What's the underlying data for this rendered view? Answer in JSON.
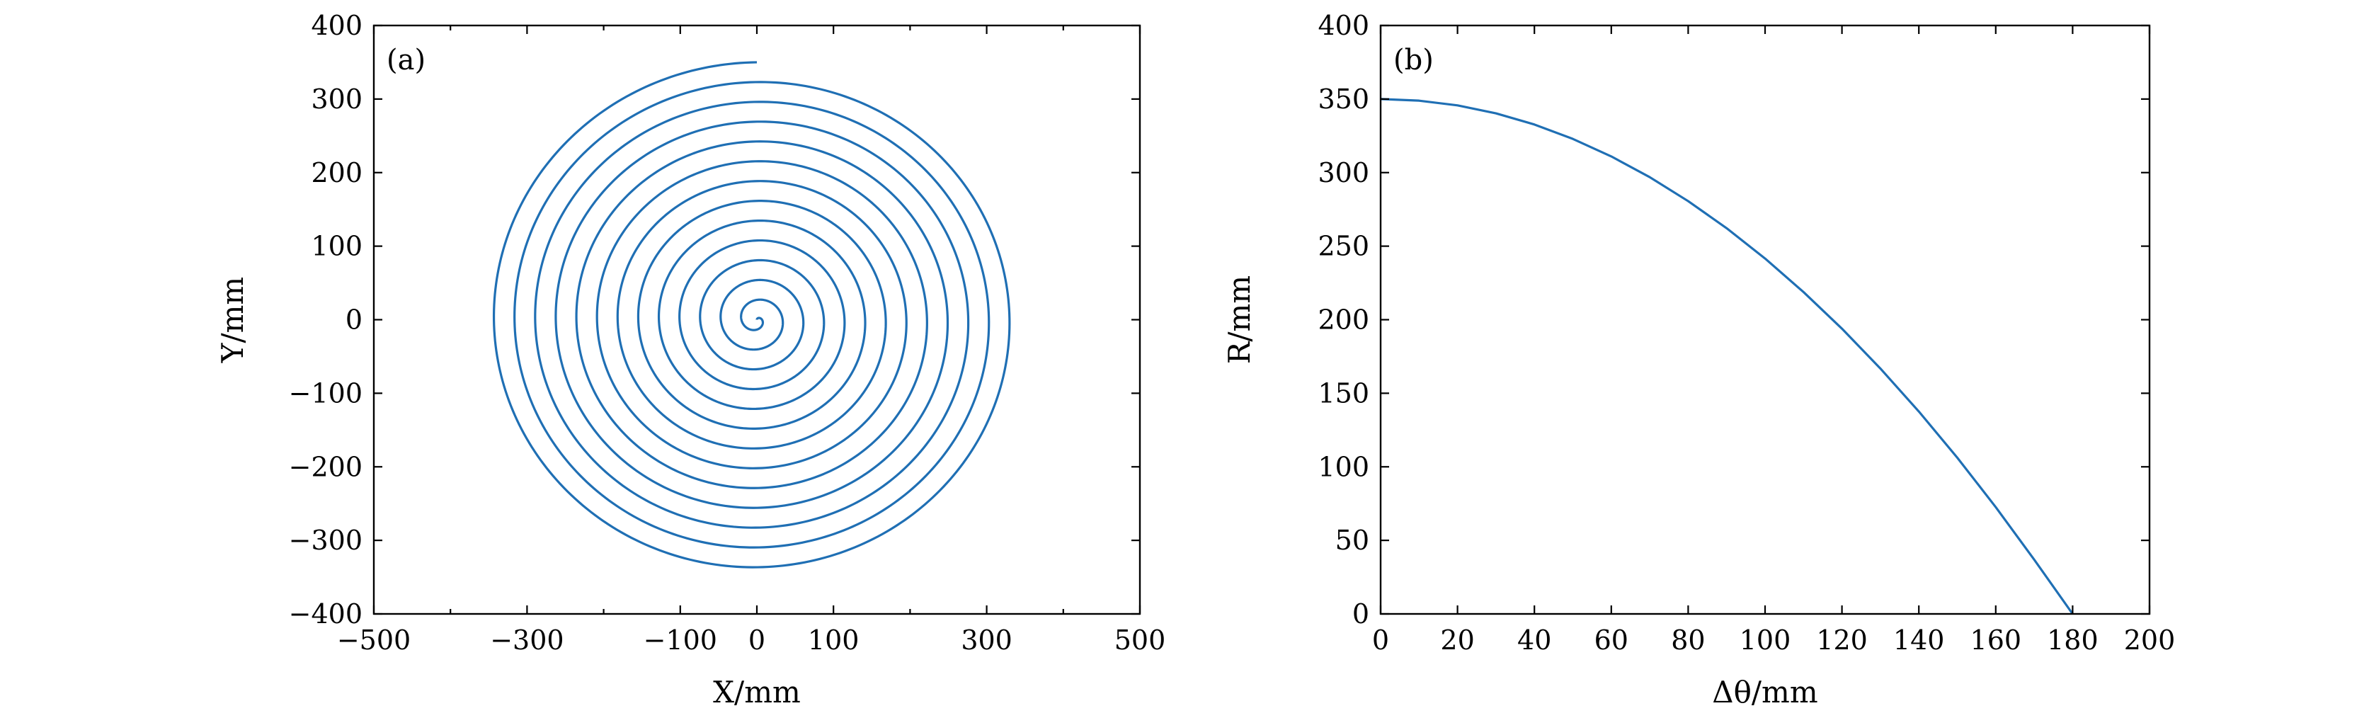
{
  "chart_data": [
    {
      "type": "line",
      "panel_label": "(a)",
      "xlabel": "X/mm",
      "ylabel": "Y/mm",
      "xlim": [
        -500,
        500
      ],
      "ylim": [
        -400,
        400
      ],
      "xticks": [
        -500,
        -300,
        -100,
        0,
        100,
        300,
        500
      ],
      "xtick_labels": [
        "−500",
        "−300",
        "−100",
        "0",
        "100",
        "300",
        "500"
      ],
      "xminor_ticks": [
        -400,
        -200,
        200,
        400
      ],
      "yticks": [
        400,
        300,
        200,
        100,
        0,
        -100,
        -200,
        -300,
        -400
      ],
      "ytick_labels": [
        "400",
        "300",
        "200",
        "100",
        "0",
        "−100",
        "−200",
        "−300",
        "−400"
      ],
      "grid": false,
      "series": [
        {
          "description_only_as_data": "Archimedean spiral starting at the origin, about 13 turns, reaching radius 350",
          "curve": "spiral",
          "r_start": 0,
          "r_end": 350,
          "turns": 13,
          "color": "#1f6fb4"
        }
      ]
    },
    {
      "type": "line",
      "panel_label": "(b)",
      "xlabel": "Δθ/mm",
      "ylabel": "R/mm",
      "xlim": [
        0,
        200
      ],
      "ylim": [
        0,
        400
      ],
      "xticks": [
        0,
        20,
        40,
        60,
        80,
        100,
        120,
        140,
        160,
        180,
        200
      ],
      "xtick_labels": [
        "0",
        "20",
        "40",
        "60",
        "80",
        "100",
        "120",
        "140",
        "160",
        "180",
        "200"
      ],
      "yticks": [
        400,
        350,
        300,
        250,
        200,
        150,
        100,
        50,
        0
      ],
      "ytick_labels": [
        "400",
        "350",
        "300",
        "250",
        "200",
        "150",
        "100",
        "50",
        "0"
      ],
      "grid": false,
      "series": [
        {
          "color": "#1f6fb4",
          "x": [
            0,
            10,
            20,
            30,
            40,
            50,
            60,
            70,
            80,
            90,
            100,
            110,
            120,
            130,
            140,
            150,
            160,
            170,
            180
          ],
          "y": [
            350,
            348.9,
            345.7,
            340.3,
            332.7,
            322.9,
            311.0,
            296.9,
            280.6,
            262.2,
            241.6,
            218.8,
            193.9,
            166.8,
            137.6,
            106.2,
            72.6,
            36.9,
            0
          ]
        }
      ]
    }
  ]
}
